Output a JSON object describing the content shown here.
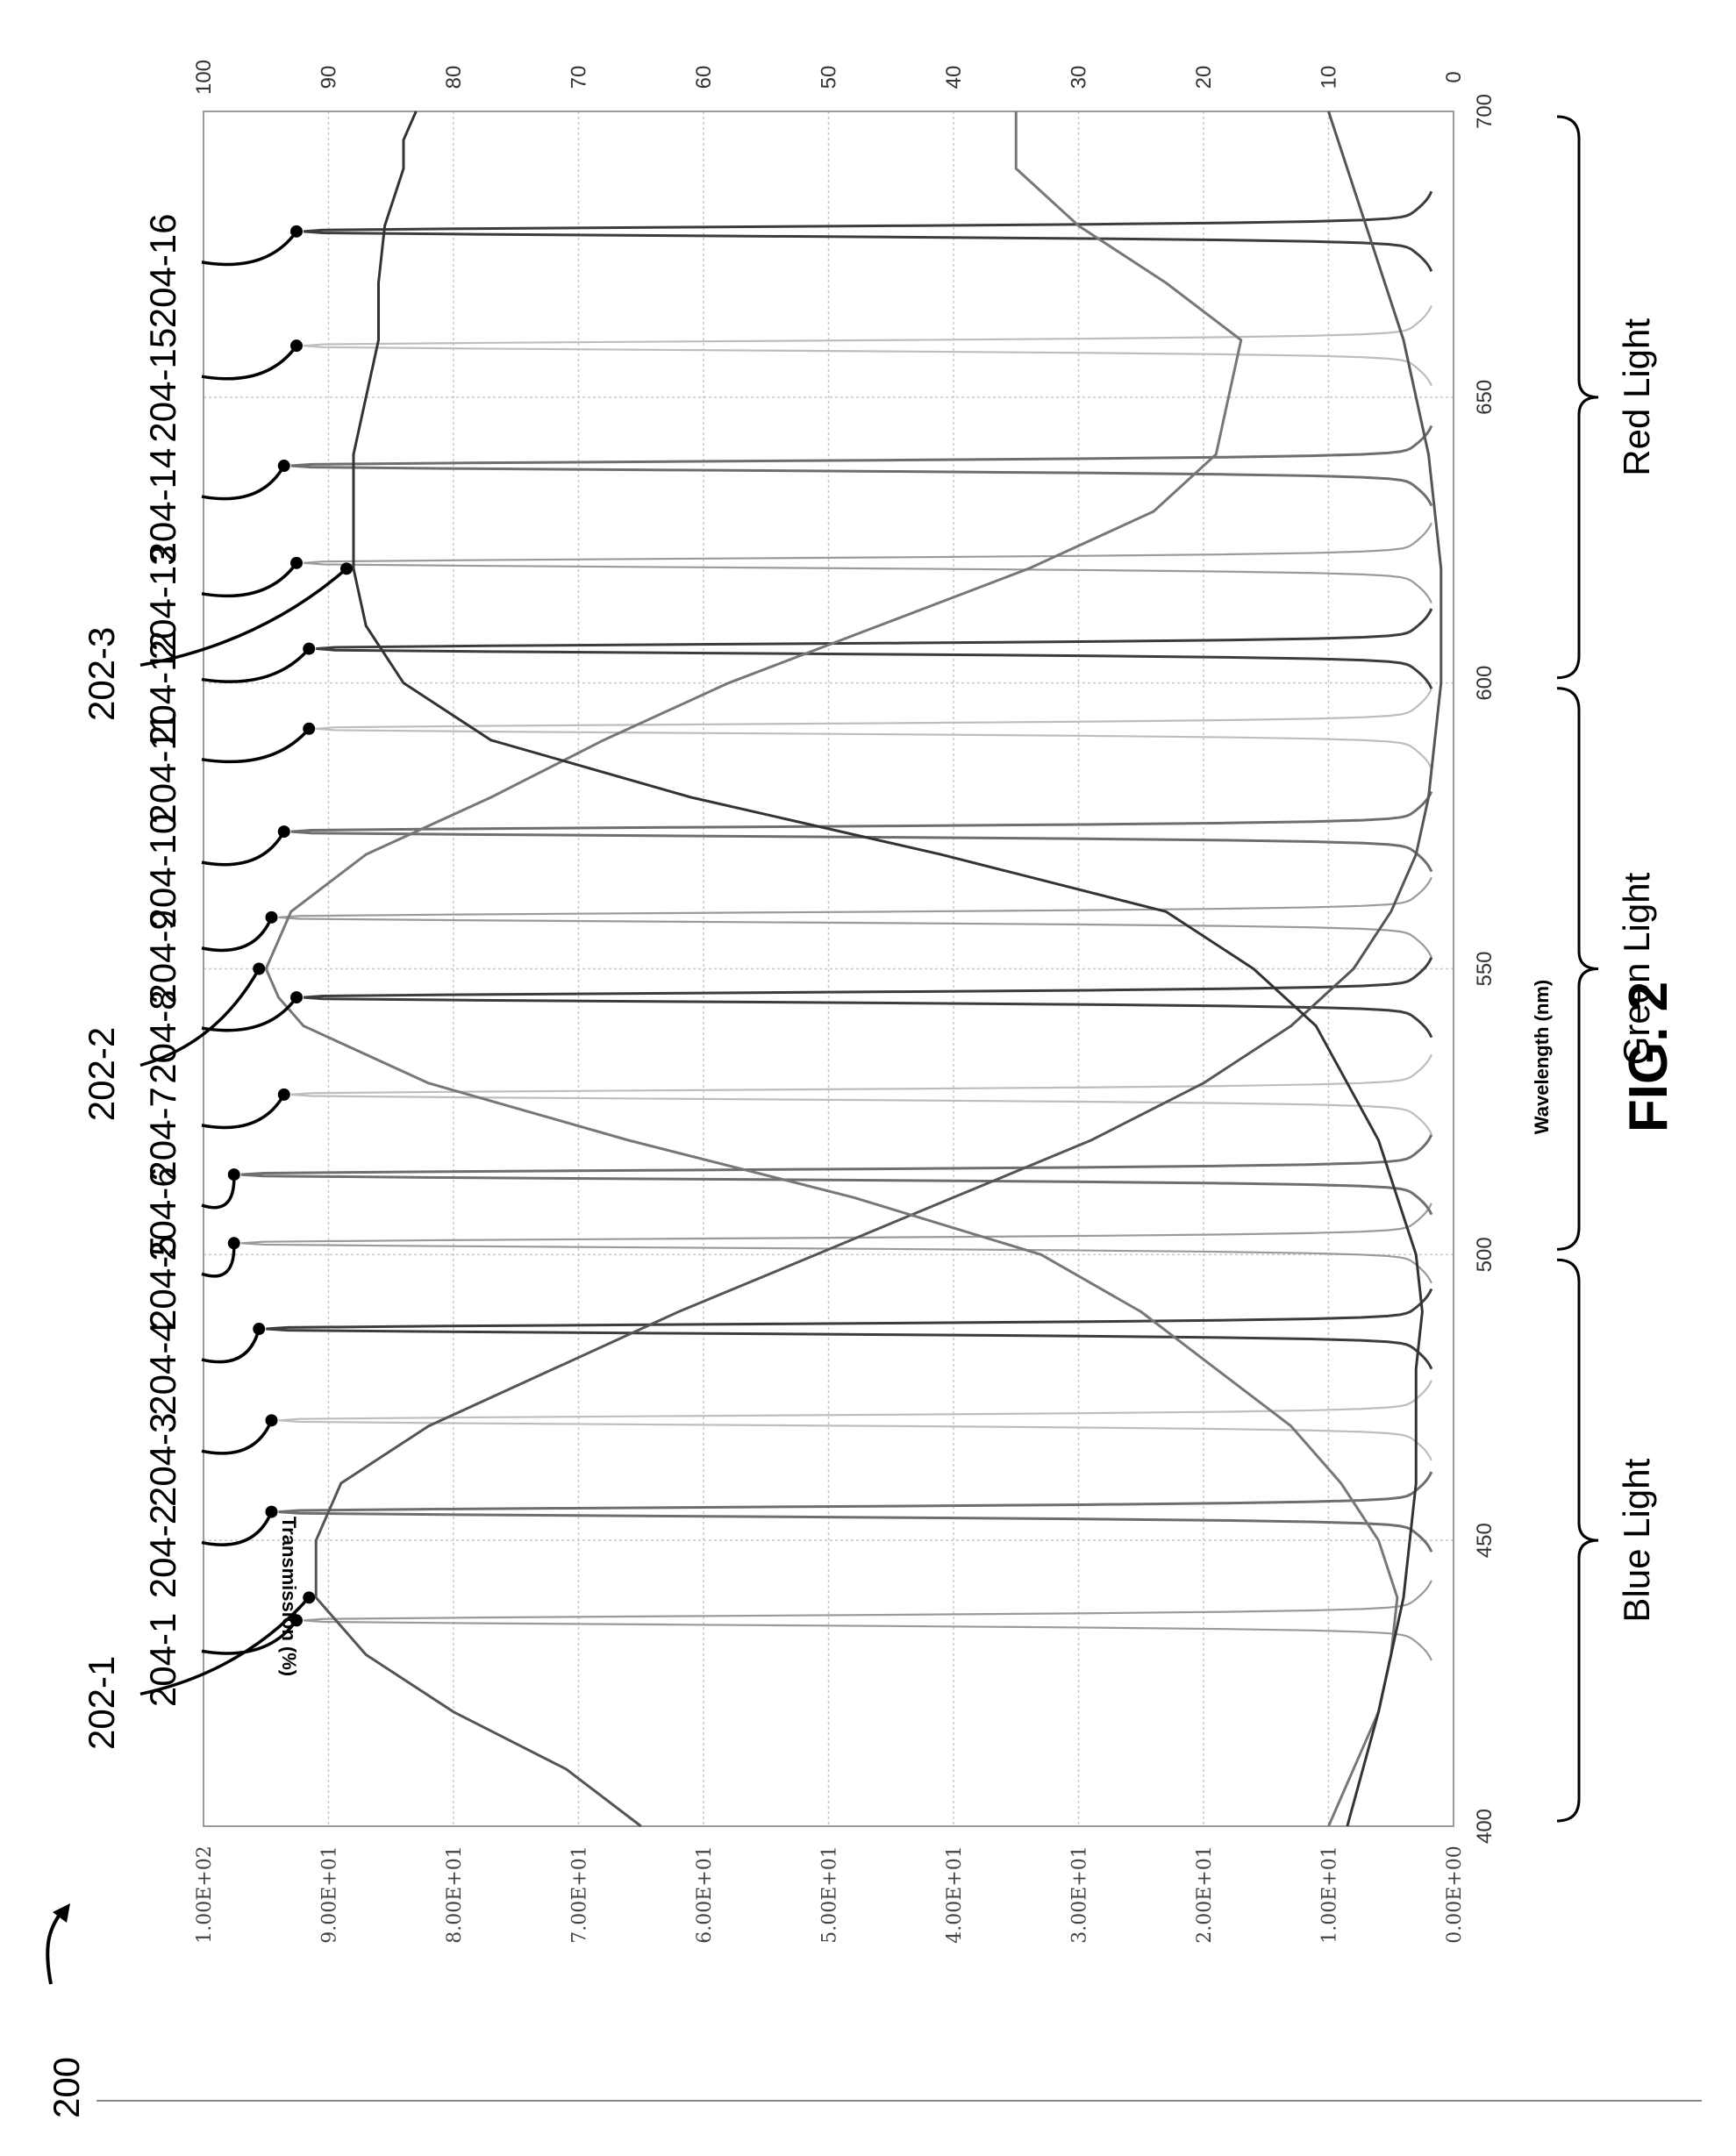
{
  "figure": {
    "ref_number": "200",
    "title": "FIG. 2"
  },
  "chart_data": {
    "type": "line",
    "xlabel": "Wavelength (nm)",
    "ylabel": "Transmission (%)",
    "xlim": [
      400,
      700
    ],
    "ylim": [
      0,
      100
    ],
    "x_ticks": [
      "400",
      "450",
      "500",
      "550",
      "600",
      "650",
      "700"
    ],
    "y_ticks_left": [
      "0.00E+00",
      "1.00E+01",
      "2.00E+01",
      "3.00E+01",
      "4.00E+01",
      "5.00E+01",
      "6.00E+01",
      "7.00E+01",
      "8.00E+01",
      "9.00E+01",
      "1.00E+02"
    ],
    "y_ticks_right": [
      "0",
      "10",
      "20",
      "30",
      "40",
      "50",
      "60",
      "70",
      "80",
      "90",
      "100"
    ],
    "grid": true,
    "regions": [
      {
        "label": "Blue Light",
        "range": [
          400,
          500
        ]
      },
      {
        "label": "Green Light",
        "range": [
          500,
          600
        ]
      },
      {
        "label": "Red Light",
        "range": [
          600,
          700
        ]
      }
    ],
    "broad_series": [
      {
        "name": "202-1",
        "points": [
          [
            400,
            65
          ],
          [
            410,
            71
          ],
          [
            420,
            80
          ],
          [
            430,
            87
          ],
          [
            440,
            91
          ],
          [
            450,
            91
          ],
          [
            460,
            89
          ],
          [
            470,
            82
          ],
          [
            480,
            72
          ],
          [
            490,
            62
          ],
          [
            500,
            51
          ],
          [
            510,
            40
          ],
          [
            520,
            29
          ],
          [
            530,
            20
          ],
          [
            540,
            13
          ],
          [
            550,
            8
          ],
          [
            560,
            5
          ],
          [
            570,
            3
          ],
          [
            580,
            2
          ],
          [
            590,
            1.5
          ],
          [
            600,
            1
          ],
          [
            620,
            1
          ],
          [
            640,
            2
          ],
          [
            660,
            4
          ],
          [
            680,
            7
          ],
          [
            700,
            10
          ]
        ]
      },
      {
        "name": "202-2",
        "points": [
          [
            400,
            10
          ],
          [
            410,
            8
          ],
          [
            420,
            6
          ],
          [
            430,
            5
          ],
          [
            440,
            4.5
          ],
          [
            450,
            6
          ],
          [
            460,
            9
          ],
          [
            470,
            13
          ],
          [
            480,
            19
          ],
          [
            490,
            25
          ],
          [
            500,
            33
          ],
          [
            510,
            48
          ],
          [
            520,
            66
          ],
          [
            530,
            82
          ],
          [
            540,
            92
          ],
          [
            545,
            94
          ],
          [
            550,
            95
          ],
          [
            560,
            93
          ],
          [
            570,
            87
          ],
          [
            580,
            77
          ],
          [
            590,
            68
          ],
          [
            600,
            58
          ],
          [
            610,
            46
          ],
          [
            620,
            34
          ],
          [
            630,
            24
          ],
          [
            640,
            19
          ],
          [
            650,
            18
          ],
          [
            660,
            17
          ],
          [
            670,
            23
          ],
          [
            680,
            30
          ],
          [
            690,
            35
          ],
          [
            700,
            35
          ]
        ]
      },
      {
        "name": "202-3",
        "points": [
          [
            400,
            8.5
          ],
          [
            420,
            6
          ],
          [
            440,
            4
          ],
          [
            460,
            3
          ],
          [
            480,
            3
          ],
          [
            490,
            2.5
          ],
          [
            500,
            3
          ],
          [
            520,
            6
          ],
          [
            540,
            11
          ],
          [
            550,
            16
          ],
          [
            560,
            23
          ],
          [
            570,
            41
          ],
          [
            580,
            61
          ],
          [
            590,
            77
          ],
          [
            600,
            84
          ],
          [
            610,
            87
          ],
          [
            620,
            88
          ],
          [
            630,
            88
          ],
          [
            640,
            88
          ],
          [
            650,
            87
          ],
          [
            660,
            86
          ],
          [
            670,
            86
          ],
          [
            680,
            85.5
          ],
          [
            690,
            84
          ],
          [
            695,
            84
          ],
          [
            700,
            83
          ]
        ]
      }
    ],
    "peak_series": [
      {
        "name": "204-1",
        "center": 436,
        "peak": 92
      },
      {
        "name": "204-2",
        "center": 455,
        "peak": 94
      },
      {
        "name": "204-3",
        "center": 471,
        "peak": 94
      },
      {
        "name": "204-4",
        "center": 487,
        "peak": 95
      },
      {
        "name": "204-5",
        "center": 502,
        "peak": 97
      },
      {
        "name": "204-6",
        "center": 514,
        "peak": 97
      },
      {
        "name": "204-7",
        "center": 528,
        "peak": 93
      },
      {
        "name": "204-8",
        "center": 545,
        "peak": 92
      },
      {
        "name": "204-9",
        "center": 559,
        "peak": 94
      },
      {
        "name": "204-10",
        "center": 574,
        "peak": 93
      },
      {
        "name": "204-11",
        "center": 592,
        "peak": 91
      },
      {
        "name": "204-12",
        "center": 606,
        "peak": 91
      },
      {
        "name": "204-13",
        "center": 621,
        "peak": 92
      },
      {
        "name": "204-14",
        "center": 638,
        "peak": 93
      },
      {
        "name": "204-15",
        "center": 659,
        "peak": 92
      },
      {
        "name": "204-16",
        "center": 679,
        "peak": 92
      }
    ]
  }
}
